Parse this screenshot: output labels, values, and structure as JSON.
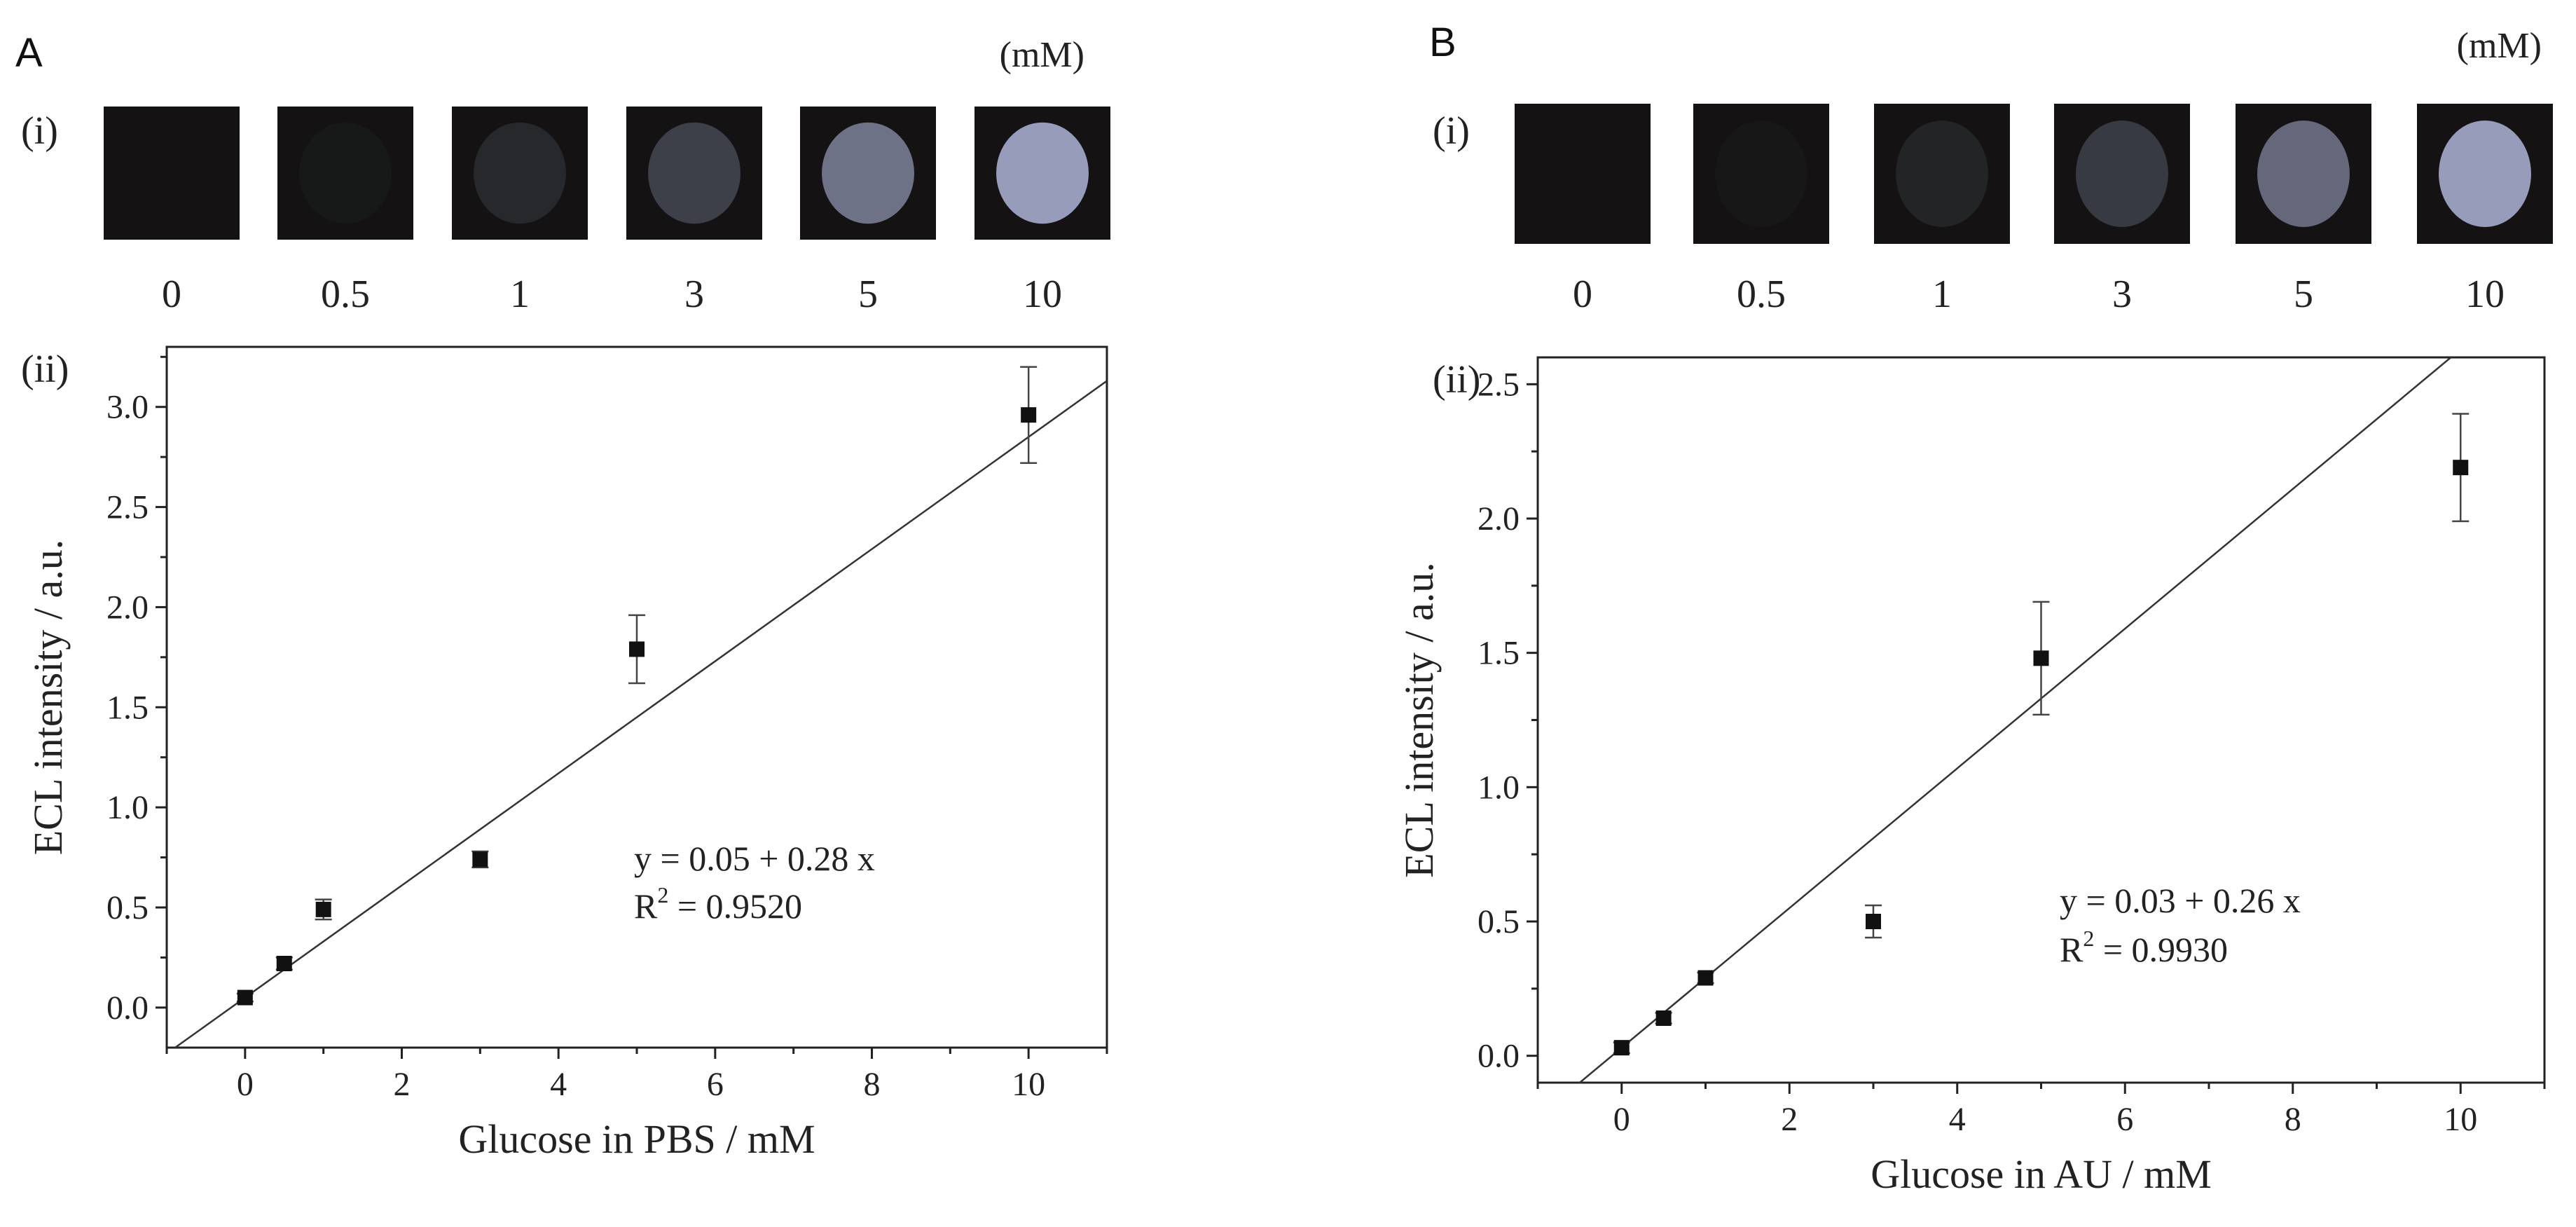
{
  "unit_text": "(mM)",
  "chart_data": [
    {
      "panel": "A",
      "type": "scatter",
      "images_label": "(i)",
      "plot_label": "(ii)",
      "image_unit": "(mM)",
      "concentrations": [
        "0",
        "0.5",
        "1",
        "3",
        "5",
        "10"
      ],
      "image_brightness": [
        0.0,
        0.05,
        0.25,
        0.45,
        0.75,
        0.95
      ],
      "xlabel": "Glucose in PBS / mM",
      "ylabel": "ECL intensity / a.u.",
      "xlim": [
        -1,
        11
      ],
      "ylim": [
        -0.2,
        3.3
      ],
      "xticks": [
        0,
        2,
        4,
        6,
        8,
        10
      ],
      "yticks": [
        0.0,
        0.5,
        1.0,
        1.5,
        2.0,
        2.5,
        3.0
      ],
      "xtick_labels": [
        "0",
        "2",
        "4",
        "6",
        "8",
        "10"
      ],
      "ytick_labels": [
        "0.0",
        "0.5",
        "1.0",
        "1.5",
        "2.0",
        "2.5",
        "3.0"
      ],
      "x": [
        0,
        0.5,
        1,
        3,
        5,
        10
      ],
      "y": [
        0.05,
        0.22,
        0.49,
        0.74,
        1.79,
        2.96
      ],
      "yerr": [
        0.02,
        0.03,
        0.05,
        0.04,
        0.17,
        0.24
      ],
      "fit": {
        "intercept": 0.05,
        "slope": 0.28
      },
      "equation": "y = 0.05 + 0.28 x",
      "r2_prefix": "R",
      "r2_sup": "2",
      "r2_value": " = 0.9520"
    },
    {
      "panel": "B",
      "type": "scatter",
      "images_label": "(i)",
      "plot_label": "(ii)",
      "image_unit": "(mM)",
      "concentrations": [
        "0",
        "0.5",
        "1",
        "3",
        "5",
        "10"
      ],
      "image_brightness": [
        0.0,
        0.03,
        0.2,
        0.4,
        0.7,
        0.95
      ],
      "xlabel": "Glucose in AU / mM",
      "ylabel": "ECL intensity / a.u.",
      "xlim": [
        -1,
        11
      ],
      "ylim": [
        -0.1,
        2.6
      ],
      "xticks": [
        0,
        2,
        4,
        6,
        8,
        10
      ],
      "yticks": [
        0.0,
        0.5,
        1.0,
        1.5,
        2.0,
        2.5
      ],
      "xtick_labels": [
        "0",
        "2",
        "4",
        "6",
        "8",
        "10"
      ],
      "ytick_labels": [
        "0.0",
        "0.5",
        "1.0",
        "1.5",
        "2.0",
        "2.5"
      ],
      "x": [
        0,
        0.5,
        1,
        3,
        5,
        10
      ],
      "y": [
        0.03,
        0.14,
        0.29,
        0.5,
        1.48,
        2.19
      ],
      "yerr": [
        0.02,
        0.02,
        0.02,
        0.06,
        0.21,
        0.2
      ],
      "fit": {
        "intercept": 0.03,
        "slope": 0.26
      },
      "equation": "y = 0.03 + 0.26 x",
      "r2_prefix": "R",
      "r2_sup": "2",
      "r2_value": " = 0.9930"
    }
  ]
}
